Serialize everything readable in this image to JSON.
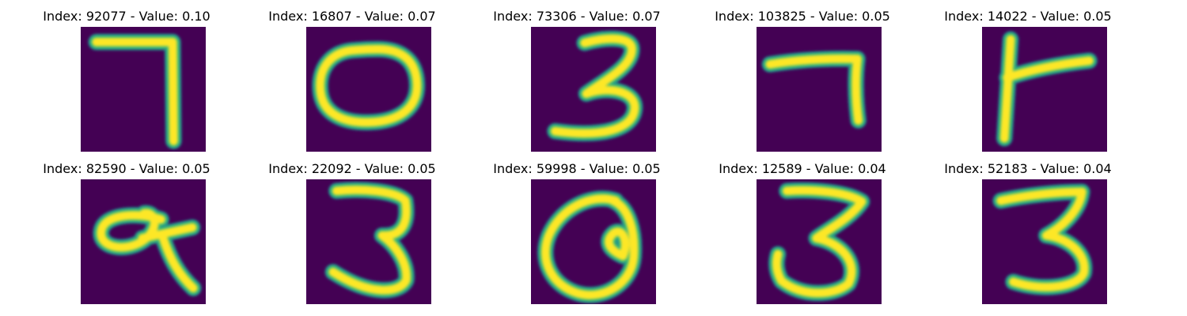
{
  "colors": {
    "background": "#440154",
    "ink_core": "#fde725",
    "ink_edge": "#35b779",
    "ink_halo": "#21918c"
  },
  "items": [
    {
      "index": "92077",
      "value": "0.10",
      "glyph": "seven-a"
    },
    {
      "index": "16807",
      "value": "0.07",
      "glyph": "zero"
    },
    {
      "index": "73306",
      "value": "0.07",
      "glyph": "three-a"
    },
    {
      "index": "103825",
      "value": "0.05",
      "glyph": "seven-b"
    },
    {
      "index": "14022",
      "value": "0.05",
      "glyph": "seven-c"
    },
    {
      "index": "82590",
      "value": "0.05",
      "glyph": "nine-a"
    },
    {
      "index": "22092",
      "value": "0.05",
      "glyph": "three-b"
    },
    {
      "index": "59998",
      "value": "0.05",
      "glyph": "nine-b"
    },
    {
      "index": "12589",
      "value": "0.04",
      "glyph": "three-c"
    },
    {
      "index": "52183",
      "value": "0.04",
      "glyph": "three-d"
    }
  ]
}
